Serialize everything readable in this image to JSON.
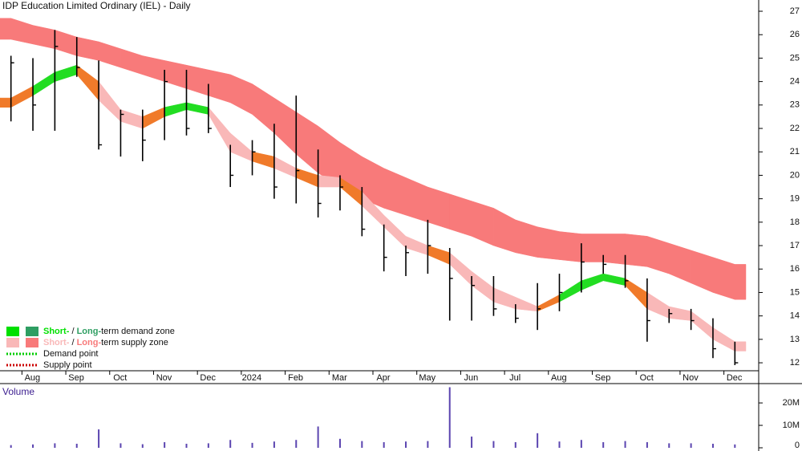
{
  "chart_data": [
    {
      "type": "ohlc",
      "title": "IDP Education Limited Ordinary (IEL) - Daily",
      "categories": [
        null,
        "Aug",
        null,
        "Sep",
        null,
        "Oct",
        null,
        "Nov",
        null,
        "Dec",
        null,
        "2024",
        null,
        "Feb",
        null,
        "Mar",
        null,
        "Apr",
        null,
        "May",
        null,
        "Jun",
        null,
        "Jul",
        null,
        "Aug",
        null,
        "Sep",
        null,
        "Oct",
        null,
        "Nov",
        null,
        "Dec"
      ],
      "high": [
        25.1,
        25.0,
        26.2,
        25.9,
        24.9,
        22.8,
        22.8,
        24.5,
        24.5,
        23.9,
        21.3,
        21.5,
        22.2,
        23.4,
        21.1,
        20.0,
        19.5,
        17.9,
        17.0,
        18.1,
        16.9,
        15.7,
        15.7,
        14.5,
        15.4,
        15.8,
        17.1,
        16.6,
        16.6,
        15.6,
        14.3,
        14.3,
        13.9,
        12.9
      ],
      "low": [
        22.3,
        21.9,
        21.9,
        24.2,
        21.1,
        20.8,
        20.6,
        21.5,
        21.7,
        21.8,
        19.5,
        20.0,
        19.0,
        18.8,
        18.2,
        18.5,
        17.4,
        15.9,
        15.7,
        15.8,
        13.8,
        13.8,
        14.0,
        13.7,
        13.4,
        14.2,
        15.0,
        15.8,
        15.2,
        12.9,
        13.7,
        13.4,
        12.2,
        11.9
      ],
      "close": [
        24.8,
        23.0,
        25.5,
        24.6,
        21.3,
        22.6,
        21.5,
        24.0,
        22.0,
        22.0,
        20.0,
        21.0,
        19.5,
        20.2,
        18.8,
        19.5,
        17.7,
        16.5,
        16.7,
        17.0,
        15.6,
        15.3,
        14.3,
        13.9,
        14.3,
        15.0,
        16.3,
        16.2,
        15.5,
        13.8,
        14.1,
        13.8,
        12.6,
        12.0
      ],
      "color": "#000000",
      "short_band": {
        "upper": [
          23.3,
          23.8,
          24.4,
          24.7,
          24.0,
          22.8,
          22.5,
          22.9,
          23.1,
          22.9,
          21.8,
          21.0,
          20.8,
          20.3,
          20.0,
          19.9,
          19.3,
          18.3,
          17.4,
          17.0,
          16.7,
          15.9,
          15.2,
          14.8,
          14.4,
          14.9,
          15.5,
          15.8,
          15.6,
          15.0,
          14.4,
          14.2,
          13.5,
          12.9
        ],
        "lower": [
          22.9,
          23.4,
          24.0,
          24.3,
          23.2,
          22.3,
          22.0,
          22.5,
          22.8,
          22.6,
          21.0,
          20.6,
          20.3,
          19.9,
          19.5,
          19.5,
          18.7,
          17.8,
          16.9,
          16.6,
          16.2,
          15.3,
          14.6,
          14.3,
          14.2,
          14.6,
          15.1,
          15.5,
          15.3,
          14.3,
          13.9,
          13.8,
          13.0,
          12.5
        ],
        "colors": [
          "#f07a2a",
          "#22dd22",
          "#22dd22",
          "#f07a2a",
          "#f9b8b8",
          "#f9b8b8",
          "#f07a2a",
          "#22dd22",
          "#22dd22",
          "#f9b8b8",
          "#f9b8b8",
          "#f07a2a",
          "#f9b8b8",
          "#f07a2a",
          "#f9b8b8",
          "#f07a2a",
          "#f9b8b8",
          "#f9b8b8",
          "#f9b8b8",
          "#f07a2a",
          "#f9b8b8",
          "#f9b8b8",
          "#f9b8b8",
          "#f9b8b8",
          "#f07a2a",
          "#22dd22",
          "#22dd22",
          "#22dd22",
          "#f07a2a",
          "#f9b8b8",
          "#f9b8b8",
          "#f9b8b8",
          "#f9b8b8",
          "#f9b8b8"
        ]
      },
      "long_band": {
        "upper": [
          26.7,
          26.4,
          26.2,
          25.9,
          25.7,
          25.4,
          25.1,
          24.9,
          24.7,
          24.5,
          24.3,
          23.9,
          23.3,
          22.7,
          22.1,
          21.4,
          20.8,
          20.3,
          19.9,
          19.5,
          19.2,
          18.9,
          18.6,
          18.1,
          17.8,
          17.6,
          17.5,
          17.5,
          17.5,
          17.4,
          17.1,
          16.8,
          16.5,
          16.2
        ],
        "lower": [
          25.8,
          25.6,
          25.4,
          25.1,
          24.9,
          24.6,
          24.3,
          24.0,
          23.7,
          23.4,
          23.1,
          22.6,
          21.8,
          20.9,
          20.1,
          19.5,
          19.0,
          18.6,
          18.3,
          18.0,
          17.7,
          17.4,
          17.0,
          16.7,
          16.5,
          16.4,
          16.3,
          16.3,
          16.2,
          16.1,
          15.8,
          15.4,
          15.0,
          14.7
        ],
        "color": "#f87a7a"
      },
      "ylim": [
        11.66,
        27.48
      ],
      "yticks": [
        12,
        13,
        14,
        15,
        16,
        17,
        18,
        19,
        20,
        21,
        22,
        23,
        24,
        25,
        26,
        27
      ],
      "legend": [
        {
          "short": "Short-",
          "sep": " / ",
          "long": "Long-",
          "rest": "term demand zone",
          "short_color": "#00e000",
          "long_color": "#2e9e62"
        },
        {
          "short": "Short-",
          "sep": " / ",
          "long": "Long-",
          "rest": "term supply zone",
          "short_color": "#f9b8b8",
          "long_color": "#f87a7a"
        },
        {
          "label": "Demand point",
          "color": "#00cc00"
        },
        {
          "label": "Supply point",
          "color": "#cc0000"
        }
      ]
    },
    {
      "type": "bar",
      "title": "Volume",
      "values": [
        1200000,
        1500000,
        2000000,
        1800000,
        8200000,
        2000000,
        1600000,
        2500000,
        1800000,
        2000000,
        3500000,
        2200000,
        2800000,
        3500000,
        9500000,
        4000000,
        3000000,
        2500000,
        2800000,
        3000000,
        27000000,
        5000000,
        3000000,
        2500000,
        6500000,
        2800000,
        3500000,
        2500000,
        3000000,
        2500000,
        2000000,
        2000000,
        1800000,
        1500000
      ],
      "color": "#5b45b0",
      "ylim": [
        0,
        27900000
      ],
      "yticks": [
        0,
        {
          "value": 10000000,
          "label": "10M"
        },
        {
          "value": 20000000,
          "label": "20M"
        }
      ]
    }
  ]
}
